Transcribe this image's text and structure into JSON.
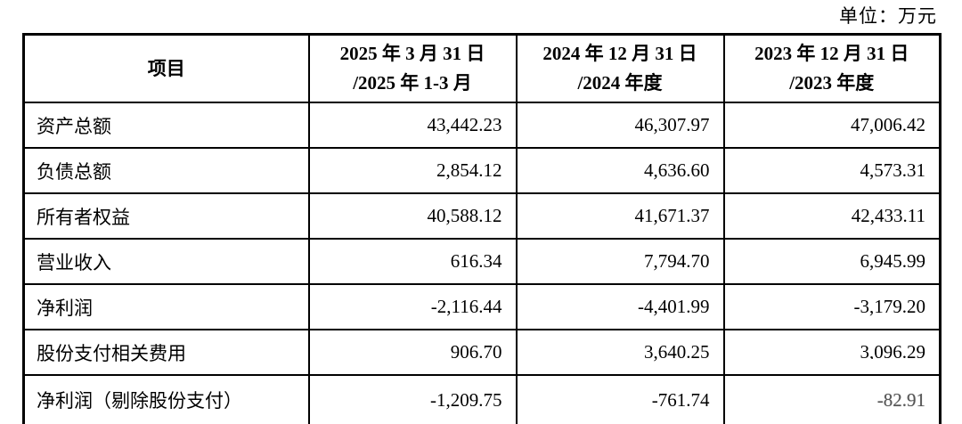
{
  "unit_label": "单位：万元",
  "colors": {
    "text": "#000000",
    "border": "#000000",
    "background": "#ffffff"
  },
  "table": {
    "header": {
      "item_label": "项目",
      "columns": [
        {
          "line1": "2025 年 3 月 31 日",
          "line2": "/2025 年 1-3 月"
        },
        {
          "line1": "2024 年 12 月 31 日",
          "line2": "/2024 年度"
        },
        {
          "line1": "2023 年 12 月 31 日",
          "line2": "/2023 年度"
        }
      ]
    },
    "rows": [
      {
        "label": "资产总额",
        "values": [
          "43,442.23",
          "46,307.97",
          "47,006.42"
        ]
      },
      {
        "label": "负债总额",
        "values": [
          "2,854.12",
          "4,636.60",
          "4,573.31"
        ]
      },
      {
        "label": "所有者权益",
        "values": [
          "40,588.12",
          "41,671.37",
          "42,433.11"
        ]
      },
      {
        "label": "营业收入",
        "values": [
          "616.34",
          "7,794.70",
          "6,945.99"
        ]
      },
      {
        "label": "净利润",
        "values": [
          "-2,116.44",
          "-4,401.99",
          "-3,179.20"
        ]
      },
      {
        "label": "股份支付相关费用",
        "values": [
          "906.70",
          "3,640.25",
          "3,096.29"
        ]
      },
      {
        "label": "净利润（剔除股份支付）",
        "values": [
          "-1,209.75",
          "-761.74",
          "-82.91"
        ]
      }
    ]
  }
}
